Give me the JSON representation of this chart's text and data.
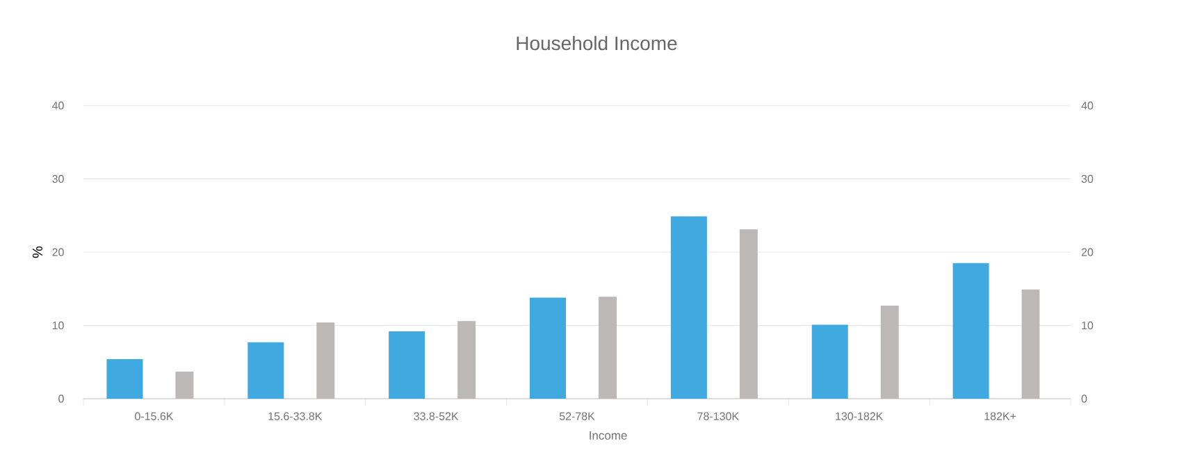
{
  "chart_data": {
    "type": "bar",
    "title": "Household Income",
    "xlabel": "Income",
    "ylabel": "%",
    "categories": [
      "0-15.6K",
      "15.6-33.8K",
      "33.8-52K",
      "52-78K",
      "78-130K",
      "130-182K",
      "182K+"
    ],
    "series": [
      {
        "color": "#3fa9e0",
        "values": [
          5.4,
          7.7,
          9.2,
          13.8,
          24.9,
          10.1,
          18.5
        ]
      },
      {
        "color": "#bdb8b8",
        "values": [
          3.7,
          10.4,
          10.6,
          13.9,
          23.1,
          12.7,
          14.9
        ]
      }
    ],
    "ylim": [
      0,
      40
    ],
    "yticks": [
      0,
      10,
      20,
      30,
      40
    ],
    "y2lim": [
      0,
      40
    ],
    "y2ticks": [
      0,
      10,
      20,
      30,
      40
    ],
    "grid": "y"
  }
}
